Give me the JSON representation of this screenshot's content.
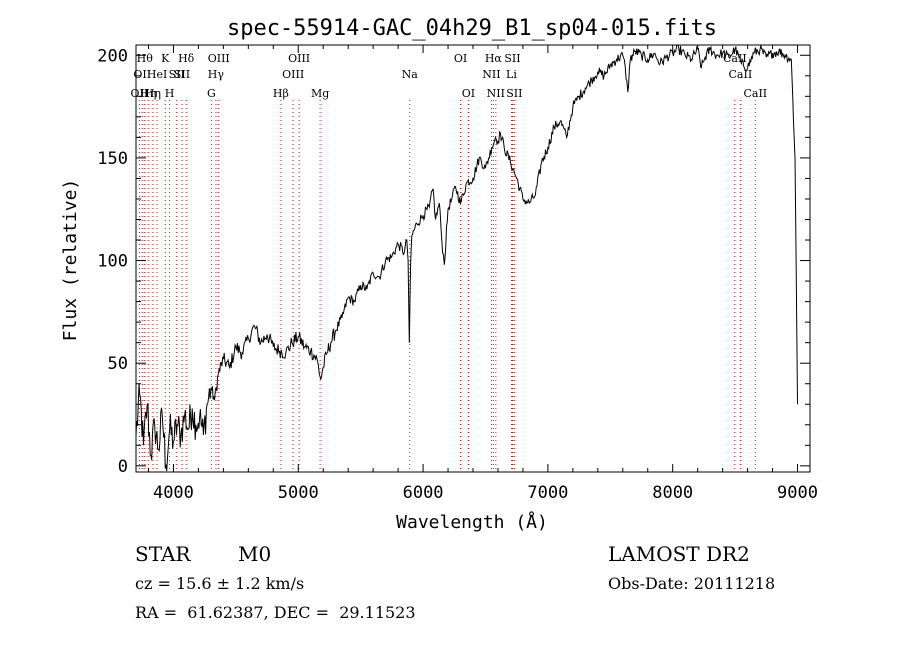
{
  "chart_data": {
    "type": "line",
    "title": "spec-55914-GAC_04h29_B1_sp04-015.fits",
    "xlabel": "Wavelength (Å)",
    "ylabel": "Flux (relative)",
    "xlim": [
      3700,
      9100
    ],
    "ylim": [
      -3,
      205
    ],
    "xticks": [
      4000,
      5000,
      6000,
      7000,
      8000,
      9000
    ],
    "yticks": [
      0,
      50,
      100,
      150,
      200
    ],
    "line_color": "#000000",
    "marker_color": "#ff0000",
    "grid": false,
    "series": [
      {
        "x": [
          3700,
          3730,
          3760,
          3790,
          3820,
          3850,
          3880,
          3910,
          3940,
          3970,
          4000,
          4030,
          4060,
          4090,
          4120,
          4150,
          4180,
          4210,
          4240,
          4270,
          4300,
          4330,
          4360,
          4400,
          4450,
          4500,
          4550,
          4600,
          4650,
          4700,
          4750,
          4800,
          4850,
          4900,
          4950,
          5000,
          5050,
          5100,
          5150,
          5180,
          5200,
          5230,
          5260,
          5300,
          5350,
          5400,
          5450,
          5500,
          5550,
          5600,
          5650,
          5700,
          5750,
          5800,
          5850,
          5870,
          5880,
          5890,
          5900,
          5910,
          5950,
          6000,
          6050,
          6080,
          6100,
          6130,
          6150,
          6170,
          6200,
          6230,
          6260,
          6300,
          6350,
          6400,
          6450,
          6500,
          6550,
          6580,
          6600,
          6620,
          6650,
          6700,
          6750,
          6800,
          6850,
          6900,
          6950,
          7000,
          7050,
          7100,
          7150,
          7200,
          7250,
          7300,
          7350,
          7400,
          7450,
          7500,
          7550,
          7600,
          7620,
          7640,
          7660,
          7700,
          7750,
          7800,
          7850,
          7900,
          7950,
          8000,
          8050,
          8100,
          8150,
          8200,
          8230,
          8260,
          8300,
          8350,
          8400,
          8450,
          8500,
          8550,
          8600,
          8650,
          8700,
          8750,
          8800,
          8850,
          8900,
          8950,
          8980,
          9000
        ],
        "y": [
          15,
          35,
          10,
          30,
          5,
          20,
          8,
          25,
          0,
          18,
          12,
          20,
          15,
          25,
          18,
          28,
          20,
          24,
          15,
          30,
          38,
          32,
          45,
          52,
          48,
          58,
          55,
          62,
          68,
          60,
          64,
          58,
          56,
          55,
          60,
          63,
          58,
          56,
          52,
          42,
          48,
          55,
          60,
          66,
          72,
          82,
          80,
          88,
          86,
          94,
          92,
          100,
          102,
          108,
          104,
          110,
          100,
          60,
          98,
          112,
          118,
          122,
          126,
          135,
          120,
          128,
          110,
          98,
          125,
          130,
          136,
          128,
          138,
          140,
          150,
          145,
          155,
          160,
          158,
          162,
          155,
          148,
          140,
          130,
          128,
          132,
          148,
          155,
          165,
          168,
          160,
          175,
          180,
          184,
          188,
          192,
          190,
          195,
          198,
          200,
          194,
          182,
          198,
          202,
          200,
          198,
          201,
          196,
          199,
          201,
          203,
          200,
          198,
          203,
          194,
          199,
          203,
          200,
          201,
          199,
          203,
          196,
          194,
          201,
          203,
          199,
          201,
          202,
          200,
          198,
          150,
          30
        ]
      }
    ],
    "line_markers": [
      {
        "x": 3727,
        "label": "OII",
        "row": 3
      },
      {
        "x": 3750,
        "label": "OII",
        "row": 2
      },
      {
        "x": 3770,
        "label": "Hθ",
        "row": 1
      },
      {
        "x": 3798,
        "label": "Hη",
        "row": 3
      },
      {
        "x": 3835,
        "label": "Hη",
        "row": 3
      },
      {
        "x": 3869,
        "label": "HeI",
        "row": 2
      },
      {
        "x": 3934,
        "label": "K",
        "row": 1
      },
      {
        "x": 3969,
        "label": "H",
        "row": 3
      },
      {
        "x": 4026,
        "label": "SII",
        "row": 2
      },
      {
        "x": 4068,
        "label": "SII",
        "row": 2
      },
      {
        "x": 4102,
        "label": "Hδ",
        "row": 1
      },
      {
        "x": 4304,
        "label": "G",
        "row": 3
      },
      {
        "x": 4340,
        "label": "Hγ",
        "row": 2
      },
      {
        "x": 4363,
        "label": "OIII",
        "row": 1
      },
      {
        "x": 4861,
        "label": "Hβ",
        "row": 3
      },
      {
        "x": 4959,
        "label": "OIII",
        "row": 2
      },
      {
        "x": 5007,
        "label": "OIII",
        "row": 1
      },
      {
        "x": 5175,
        "label": "Mg",
        "row": 3
      },
      {
        "x": 5893,
        "label": "Na",
        "row": 2
      },
      {
        "x": 6300,
        "label": "OI",
        "row": 1
      },
      {
        "x": 6363,
        "label": "OI",
        "row": 3
      },
      {
        "x": 6548,
        "label": "NII",
        "row": 2
      },
      {
        "x": 6563,
        "label": "Hα",
        "row": 1
      },
      {
        "x": 6583,
        "label": "NII",
        "row": 3
      },
      {
        "x": 6708,
        "label": "Li",
        "row": 2
      },
      {
        "x": 6716,
        "label": "SII",
        "row": 1
      },
      {
        "x": 6731,
        "label": "SII",
        "row": 3
      },
      {
        "x": 8498,
        "label": "CaII",
        "row": 1
      },
      {
        "x": 8542,
        "label": "CaII",
        "row": 2
      },
      {
        "x": 8662,
        "label": "CaII",
        "row": 3
      }
    ]
  },
  "info": {
    "object_type": "STAR",
    "subclass": "M0",
    "survey": "LAMOST DR2",
    "velocity": "cz = 15.6 ± 1.2 km/s",
    "obs_date": "Obs-Date: 20111218",
    "coords": "RA =  61.62387, DEC =  29.11523"
  }
}
